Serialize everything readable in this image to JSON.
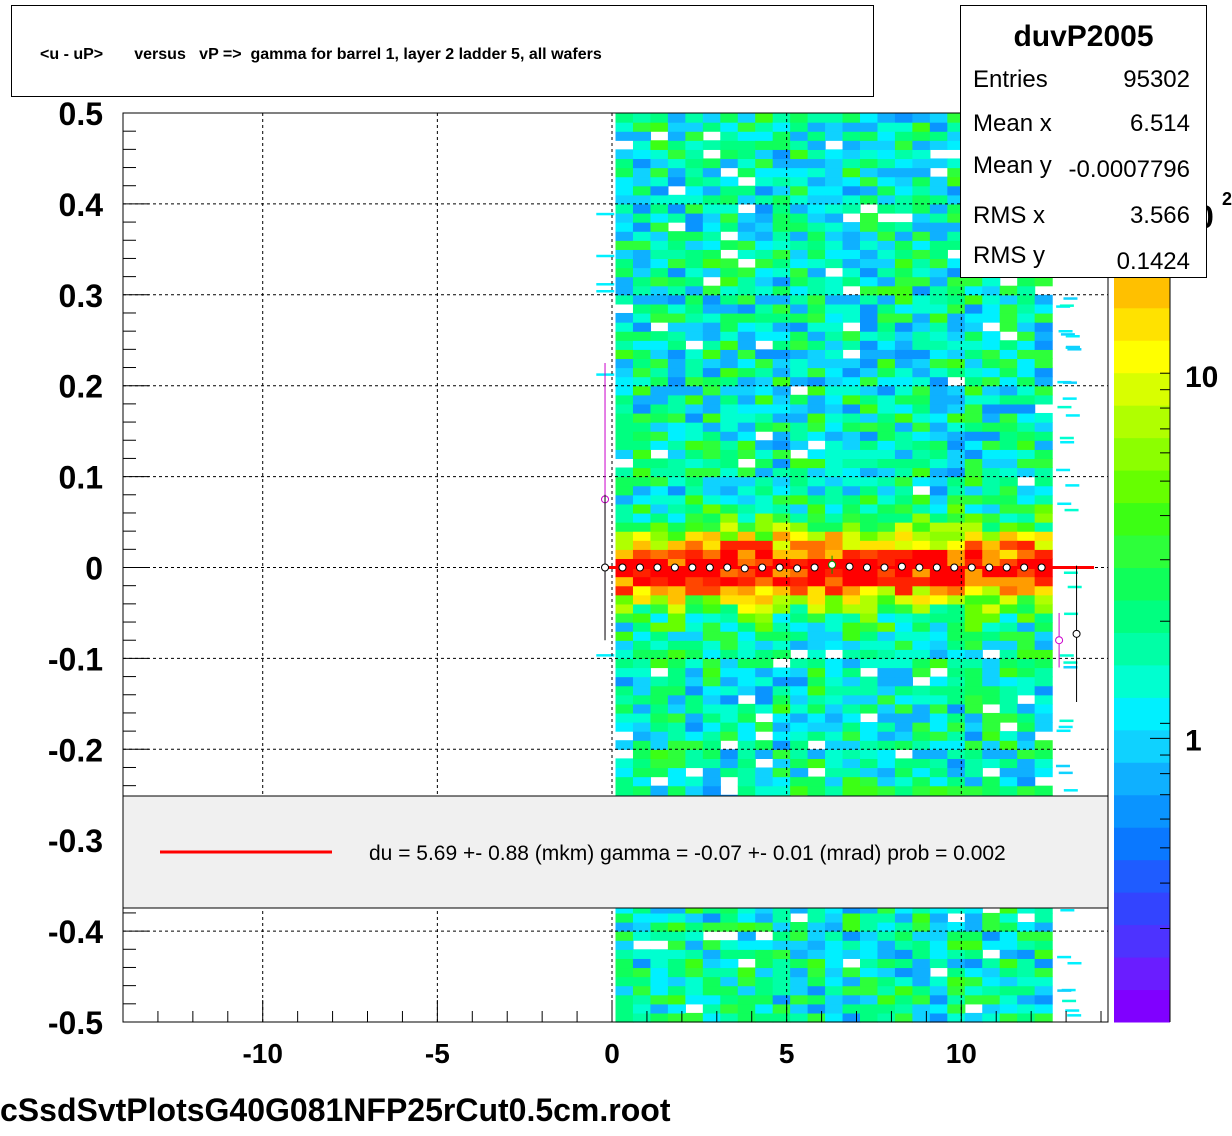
{
  "title": "<u - uP>       versus   vP =>  gamma for barrel 1, layer 2 ladder 5, all wafers",
  "stats": {
    "name": "duvP2005",
    "rows": [
      {
        "label": "Entries",
        "value": "95302"
      },
      {
        "label": "Mean x",
        "value": "6.514"
      },
      {
        "label": "Mean y",
        "value": "-0.0007796"
      },
      {
        "label": "RMS x",
        "value": "3.566"
      },
      {
        "label": "RMS y",
        "value": "0.1424"
      }
    ]
  },
  "legend": {
    "text": "du =    5.69 +-  0.88 (mkm) gamma =   -0.07 +-  0.01 (mrad) prob = 0.002",
    "line_color": "#ff0000"
  },
  "footer": "cSsdSvtPlotsG40G081NFP25rCut0.5cm.root",
  "chart_data": {
    "type": "heatmap",
    "title": "<u - uP>       versus   vP =>  gamma for barrel 1, layer 2 ladder 5, all wafers",
    "xlabel": "",
    "ylabel": "",
    "xlim": [
      -14,
      14.2
    ],
    "ylim": [
      -0.5,
      0.5
    ],
    "x_ticks": [
      -10,
      -5,
      0,
      5,
      10
    ],
    "x_tick_labels": [
      "-10",
      "-5",
      "0",
      "5",
      "10"
    ],
    "y_ticks": [
      -0.5,
      -0.4,
      -0.3,
      -0.2,
      -0.1,
      0,
      0.1,
      0.2,
      0.3,
      0.4,
      0.5
    ],
    "y_tick_labels": [
      "-0.5",
      "-0.4",
      "-0.3",
      "-0.2",
      "-0.1",
      "0",
      "0.1",
      "0.2",
      "0.3",
      "0.4",
      "0.5"
    ],
    "grid": true,
    "occupied_x_range": [
      0.1,
      12.6
    ],
    "band_center_y": 0.0,
    "colorbar": {
      "scale": "log",
      "tick_labels": [
        "1",
        "10"
      ],
      "top_label_fragment": "0",
      "top_exponent": "2",
      "colors": [
        "#8000ff",
        "#6a1dff",
        "#4d33ff",
        "#3344ff",
        "#1f5cff",
        "#0a78ff",
        "#0a94ff",
        "#0fb0ff",
        "#0fd2ff",
        "#00f0ff",
        "#00ffd0",
        "#00ffa6",
        "#00ff80",
        "#0fff5a",
        "#2dff3a",
        "#3cff14",
        "#66ff00",
        "#8cff00",
        "#b0ff00",
        "#d8ff00",
        "#ffff00",
        "#ffe200",
        "#ffc000",
        "#ff9c00",
        "#ff7000",
        "#ff4600",
        "#ff2200",
        "#ff0000"
      ]
    },
    "profile_points": [
      {
        "x": -0.2,
        "y": 0.075,
        "err": 0.15,
        "color": "#cc00cc"
      },
      {
        "x": -0.2,
        "y": 0.0,
        "err": 0.08
      },
      {
        "x": 0.3,
        "y": 0.0,
        "err": 0.003
      },
      {
        "x": 0.8,
        "y": 0.0,
        "err": 0.003
      },
      {
        "x": 1.3,
        "y": 0.0,
        "err": 0.003
      },
      {
        "x": 1.8,
        "y": 0.0,
        "err": 0.003
      },
      {
        "x": 2.3,
        "y": 0.0,
        "err": 0.003
      },
      {
        "x": 2.8,
        "y": 0.0,
        "err": 0.003
      },
      {
        "x": 3.3,
        "y": 0.0,
        "err": 0.003
      },
      {
        "x": 3.8,
        "y": -0.001,
        "err": 0.003
      },
      {
        "x": 4.3,
        "y": 0.0,
        "err": 0.003
      },
      {
        "x": 4.8,
        "y": 0.0,
        "err": 0.003
      },
      {
        "x": 5.3,
        "y": -0.001,
        "err": 0.003
      },
      {
        "x": 5.8,
        "y": 0.0,
        "err": 0.003
      },
      {
        "x": 6.3,
        "y": 0.003,
        "err": 0.01,
        "color": "#009900"
      },
      {
        "x": 6.8,
        "y": 0.001,
        "err": 0.003
      },
      {
        "x": 7.3,
        "y": 0.0,
        "err": 0.003
      },
      {
        "x": 7.8,
        "y": 0.0,
        "err": 0.003
      },
      {
        "x": 8.3,
        "y": 0.001,
        "err": 0.003
      },
      {
        "x": 8.8,
        "y": 0.0,
        "err": 0.003
      },
      {
        "x": 9.3,
        "y": 0.0,
        "err": 0.003
      },
      {
        "x": 9.8,
        "y": 0.0,
        "err": 0.003
      },
      {
        "x": 10.3,
        "y": 0.0,
        "err": 0.003
      },
      {
        "x": 10.8,
        "y": 0.0,
        "err": 0.003
      },
      {
        "x": 11.3,
        "y": 0.0,
        "err": 0.003
      },
      {
        "x": 11.8,
        "y": 0.0,
        "err": 0.003
      },
      {
        "x": 12.3,
        "y": 0.0,
        "err": 0.003
      },
      {
        "x": 12.8,
        "y": -0.08,
        "err": 0.03,
        "color": "#cc00cc"
      },
      {
        "x": 13.3,
        "y": -0.073,
        "err": 0.075
      }
    ],
    "fit_line": {
      "x": [
        -0.3,
        13.8
      ],
      "y": [
        0.0,
        0.0
      ],
      "color": "#ff0000"
    }
  }
}
